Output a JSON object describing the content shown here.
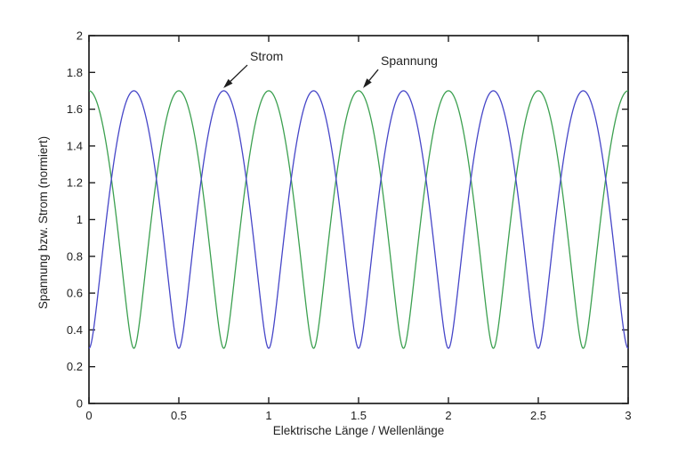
{
  "figure": {
    "background": "#ffffff",
    "axis_color": "#1f1f1f",
    "text_color": "#1f1f1f"
  },
  "chart_data": {
    "type": "line",
    "title": "",
    "xlabel": "Elektrische Länge / Wellenlänge",
    "ylabel": "Spannung bzw. Strom (normiert)",
    "xlim": [
      0,
      3
    ],
    "ylim": [
      0,
      2
    ],
    "xtick_values": [
      0,
      0.5,
      1,
      1.5,
      2,
      2.5,
      3
    ],
    "xtick_labels": [
      "0",
      "0.5",
      "1",
      "1.5",
      "2",
      "2.5",
      "3"
    ],
    "ytick_values": [
      0,
      0.2,
      0.4,
      0.6,
      0.8,
      1,
      1.2,
      1.4,
      1.6,
      1.8,
      2
    ],
    "ytick_labels": [
      "0",
      "0.2",
      "0.4",
      "0.6",
      "0.8",
      "1",
      "1.2",
      "1.4",
      "1.6",
      "1.8",
      "2"
    ],
    "grid": false,
    "legend": "none (arrow annotations instead)",
    "box": "on, mirrored inward ticks on all four sides",
    "series": [
      {
        "name": "Spannung",
        "color": "#3ca050",
        "model": "y = sqrt(A + B*cos(4*pi*x))",
        "A": 1.49,
        "B": 1.4,
        "cos_sign": 1,
        "max": 1.7,
        "min": 0.3,
        "crossing_value": 1.2207,
        "maxima_x": [
          0,
          0.5,
          1,
          1.5,
          2,
          2.5,
          3
        ],
        "minima_x": [
          0.25,
          0.75,
          1.25,
          1.75,
          2.25,
          2.75
        ]
      },
      {
        "name": "Strom",
        "color": "#4646c8",
        "model": "y = sqrt(A - B*cos(4*pi*x))",
        "A": 1.49,
        "B": 1.4,
        "cos_sign": -1,
        "max": 1.7,
        "min": 0.3,
        "crossing_value": 1.2207,
        "maxima_x": [
          0.25,
          0.75,
          1.25,
          1.75,
          2.25,
          2.75
        ],
        "minima_x": [
          0,
          0.5,
          1,
          1.5,
          2,
          2.5,
          3
        ]
      }
    ],
    "annotations": [
      {
        "label": "Strom",
        "label_xy": [
          0.896,
          1.864
        ],
        "tip_xy": [
          0.748,
          1.715
        ]
      },
      {
        "label": "Spannung",
        "label_xy": [
          1.624,
          1.84
        ],
        "tip_xy": [
          1.525,
          1.715
        ]
      }
    ]
  }
}
